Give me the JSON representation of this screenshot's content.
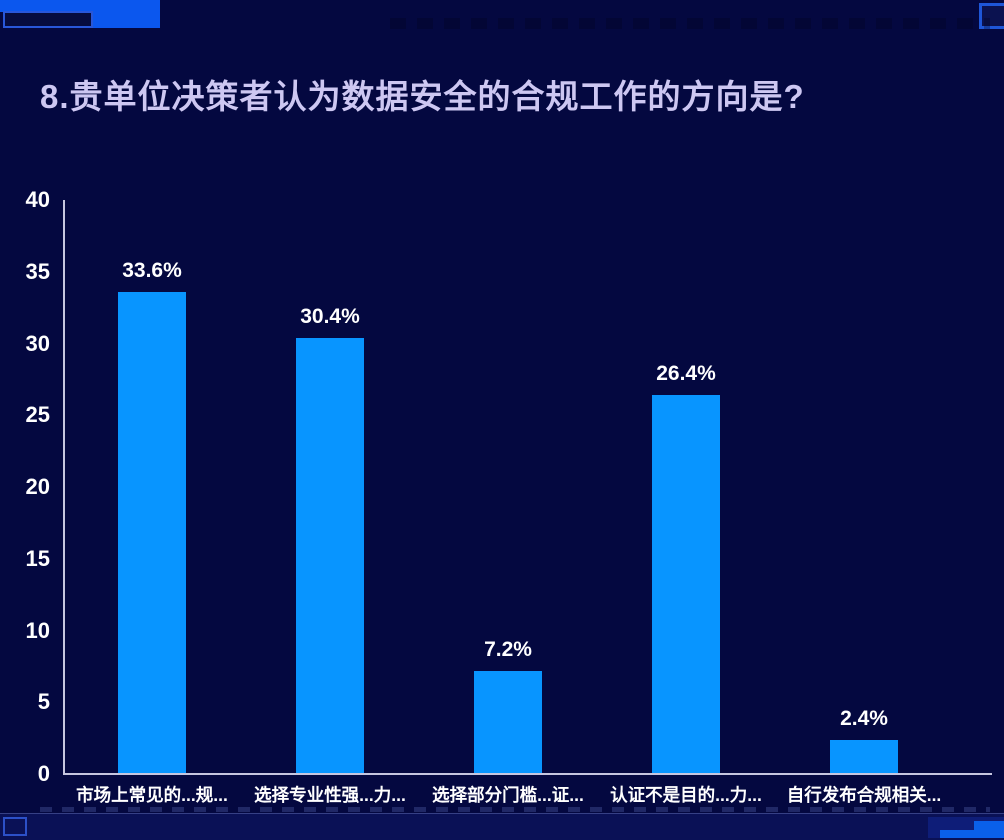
{
  "page": {
    "title": "8.贵单位决策者认为数据安全的合规工作的方向是?"
  },
  "chart_data": {
    "type": "bar",
    "title": "8.贵单位决策者认为数据安全的合规工作的方向是?",
    "categories": [
      "市场上常见的...规...",
      "选择专业性强...力...",
      "选择部分门槛...证...",
      "认证不是目的...力...",
      "自行发布合规相关..."
    ],
    "values": [
      33.6,
      30.4,
      7.2,
      26.4,
      2.4
    ],
    "value_labels": [
      "33.6%",
      "30.4%",
      "7.2%",
      "26.4%",
      "2.4%"
    ],
    "xlabel": "",
    "ylabel": "",
    "ylim": [
      0,
      40
    ],
    "y_ticks": [
      0,
      5,
      10,
      15,
      20,
      25,
      30,
      35,
      40
    ],
    "grid": false,
    "legend_position": "none",
    "bar_color": "#0895ff",
    "axis_color": "#c6c6e0",
    "data_label_color": "#ffffff",
    "tick_label_color": "#ffffff"
  },
  "colors": {
    "background": "#040840",
    "bottom_strip": "#0a1156",
    "title_text": "#cdc7f2",
    "decoration_bright_blue": "#0b57ee",
    "decoration_border_blue": "#2c50c8"
  }
}
